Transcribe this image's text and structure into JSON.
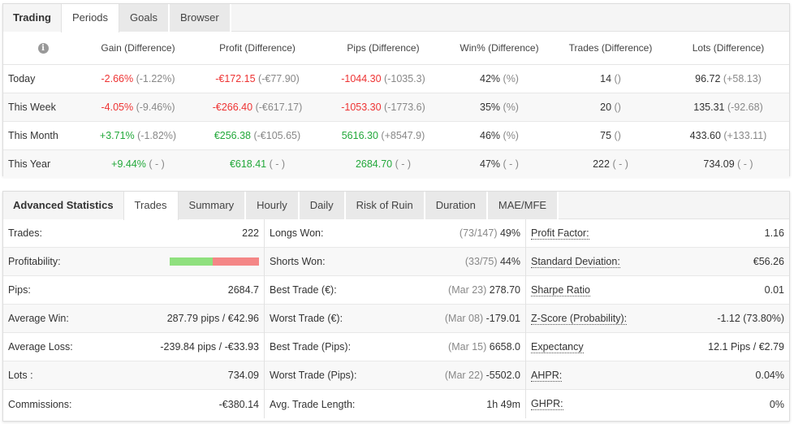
{
  "trading_panel": {
    "title": "Trading",
    "tabs": [
      {
        "label": "Periods",
        "active": true
      },
      {
        "label": "Goals",
        "active": false
      },
      {
        "label": "Browser",
        "active": false
      }
    ],
    "info_icon": "i",
    "columns": [
      "Gain (Difference)",
      "Profit (Difference)",
      "Pips (Difference)",
      "Win% (Difference)",
      "Trades (Difference)",
      "Lots (Difference)"
    ],
    "rows": [
      {
        "label": "Today",
        "gain": {
          "v": "-2.66%",
          "d": "(-1.22%)",
          "c": "red"
        },
        "profit": {
          "v": "-€172.15",
          "d": "(-€77.90)",
          "c": "red"
        },
        "pips": {
          "v": "-1044.30",
          "d": "(-1035.3)",
          "c": "red"
        },
        "win": {
          "v": "42%",
          "d": "(%)"
        },
        "trades": {
          "v": "14",
          "d": "()"
        },
        "lots": {
          "v": "96.72",
          "d": "(+58.13)"
        }
      },
      {
        "label": "This Week",
        "gain": {
          "v": "-4.05%",
          "d": "(-9.46%)",
          "c": "red"
        },
        "profit": {
          "v": "-€266.40",
          "d": "(-€617.17)",
          "c": "red"
        },
        "pips": {
          "v": "-1053.30",
          "d": "(-1773.6)",
          "c": "red"
        },
        "win": {
          "v": "35%",
          "d": "(%)"
        },
        "trades": {
          "v": "20",
          "d": "()"
        },
        "lots": {
          "v": "135.31",
          "d": "(-92.68)"
        }
      },
      {
        "label": "This Month",
        "gain": {
          "v": "+3.71%",
          "d": "(-1.82%)",
          "c": "green"
        },
        "profit": {
          "v": "€256.38",
          "d": "(-€105.65)",
          "c": "green"
        },
        "pips": {
          "v": "5616.30",
          "d": "(+8547.9)",
          "c": "green"
        },
        "win": {
          "v": "46%",
          "d": "(%)"
        },
        "trades": {
          "v": "75",
          "d": "()"
        },
        "lots": {
          "v": "433.60",
          "d": "(+133.11)"
        }
      },
      {
        "label": "This Year",
        "gain": {
          "v": "+9.44%",
          "d": "( - )",
          "c": "green"
        },
        "profit": {
          "v": "€618.41",
          "d": "( - )",
          "c": "green"
        },
        "pips": {
          "v": "2684.70",
          "d": "( - )",
          "c": "green"
        },
        "win": {
          "v": "47%",
          "d": "( - )"
        },
        "trades": {
          "v": "222",
          "d": "( - )"
        },
        "lots": {
          "v": "734.09",
          "d": "( - )"
        }
      }
    ]
  },
  "advanced_panel": {
    "title": "Advanced Statistics",
    "tabs": [
      {
        "label": "Trades",
        "active": true
      },
      {
        "label": "Summary",
        "active": false
      },
      {
        "label": "Hourly",
        "active": false
      },
      {
        "label": "Daily",
        "active": false
      },
      {
        "label": "Risk of Ruin",
        "active": false
      },
      {
        "label": "Duration",
        "active": false
      },
      {
        "label": "MAE/MFE",
        "active": false
      }
    ],
    "profitability": {
      "win_fraction": 0.48
    },
    "col1": [
      {
        "label": "Trades:",
        "value": "222"
      },
      {
        "label": "Profitability:",
        "value": ""
      },
      {
        "label": "Pips:",
        "value": "2684.7"
      },
      {
        "label": "Average Win:",
        "value": "287.79 pips / €42.96"
      },
      {
        "label": "Average Loss:",
        "value": "-239.84 pips / -€33.93"
      },
      {
        "label": "Lots :",
        "value": "734.09"
      },
      {
        "label": "Commissions:",
        "value": "-€380.14"
      }
    ],
    "col2": [
      {
        "label": "Longs Won:",
        "sub": "(73/147)",
        "value": "49%"
      },
      {
        "label": "Shorts Won:",
        "sub": "(33/75)",
        "value": "44%"
      },
      {
        "label": "Best Trade (€):",
        "sub": "(Mar 23)",
        "value": "278.70"
      },
      {
        "label": "Worst Trade (€):",
        "sub": "(Mar 08)",
        "value": "-179.01"
      },
      {
        "label": "Best Trade (Pips):",
        "sub": "(Mar 15)",
        "value": "6658.0"
      },
      {
        "label": "Worst Trade (Pips):",
        "sub": "(Mar 22)",
        "value": "-5502.0"
      },
      {
        "label": "Avg. Trade Length:",
        "sub": "",
        "value": "1h 49m"
      }
    ],
    "col3": [
      {
        "label": "Profit Factor:",
        "value": "1.16"
      },
      {
        "label": "Standard Deviation:",
        "value": "€56.26"
      },
      {
        "label": "Sharpe Ratio",
        "value": "0.01"
      },
      {
        "label": "Z-Score (Probability):",
        "value": "-1.12 (73.80%)"
      },
      {
        "label": "Expectancy",
        "value": "12.1 Pips / €2.79"
      },
      {
        "label": "AHPR:",
        "value": "0.04%"
      },
      {
        "label": "GHPR:",
        "value": "0%"
      }
    ]
  }
}
